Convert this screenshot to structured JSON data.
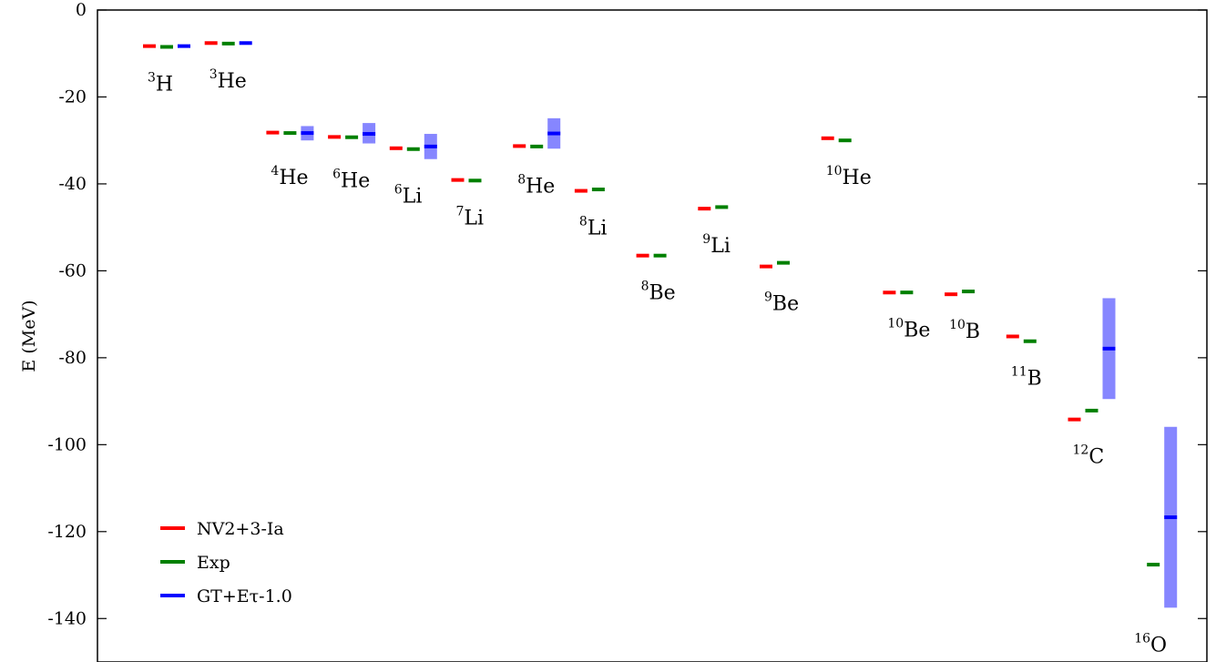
{
  "chart_data": {
    "type": "scatter",
    "title": "",
    "xlabel": "",
    "ylabel": "E (MeV)",
    "ylim": [
      -150,
      0
    ],
    "yticks": [
      0,
      -20,
      -40,
      -60,
      -80,
      -100,
      -120,
      -140
    ],
    "grid": false,
    "legend_position": "bottom-left",
    "series": [
      {
        "name": "NV2+3-Ia",
        "color": "#ff0000"
      },
      {
        "name": "Exp",
        "color": "#008000"
      },
      {
        "name": "GT+Eτ-1.0",
        "color": "#0000ff",
        "band_color": "#8080ff"
      }
    ],
    "nuclei": [
      {
        "mass": "3",
        "element": "H",
        "nv": -8.3,
        "exp": -8.48,
        "gt": -8.3,
        "gt_low": -8.3,
        "gt_high": -8.3
      },
      {
        "mass": "3",
        "element": "He",
        "nv": -7.6,
        "exp": -7.72,
        "gt": -7.6,
        "gt_low": -7.6,
        "gt_high": -7.6
      },
      {
        "mass": "4",
        "element": "He",
        "nv": -28.2,
        "exp": -28.3,
        "gt": -28.3,
        "gt_low": -30.0,
        "gt_high": -26.7
      },
      {
        "mass": "6",
        "element": "He",
        "nv": -29.2,
        "exp": -29.27,
        "gt": -28.5,
        "gt_low": -30.7,
        "gt_high": -26.0
      },
      {
        "mass": "6",
        "element": "Li",
        "nv": -31.8,
        "exp": -32.0,
        "gt": -31.4,
        "gt_low": -34.3,
        "gt_high": -28.5
      },
      {
        "mass": "7",
        "element": "Li",
        "nv": -39.1,
        "exp": -39.24,
        "gt": null,
        "gt_low": null,
        "gt_high": null
      },
      {
        "mass": "8",
        "element": "He",
        "nv": -31.3,
        "exp": -31.4,
        "gt": -28.4,
        "gt_low": -31.9,
        "gt_high": -24.9
      },
      {
        "mass": "8",
        "element": "Li",
        "nv": -41.6,
        "exp": -41.28,
        "gt": null,
        "gt_low": null,
        "gt_high": null
      },
      {
        "mass": "8",
        "element": "Be",
        "nv": -56.5,
        "exp": -56.5,
        "gt": null,
        "gt_low": null,
        "gt_high": null
      },
      {
        "mass": "9",
        "element": "Li",
        "nv": -45.7,
        "exp": -45.34,
        "gt": null,
        "gt_low": null,
        "gt_high": null
      },
      {
        "mass": "9",
        "element": "Be",
        "nv": -59.0,
        "exp": -58.16,
        "gt": null,
        "gt_low": null,
        "gt_high": null
      },
      {
        "mass": "10",
        "element": "He",
        "nv": -29.5,
        "exp": -30.0,
        "gt": null,
        "gt_low": null,
        "gt_high": null
      },
      {
        "mass": "10",
        "element": "Be",
        "nv": -65.0,
        "exp": -64.98,
        "gt": null,
        "gt_low": null,
        "gt_high": null
      },
      {
        "mass": "10",
        "element": "B",
        "nv": -65.4,
        "exp": -64.75,
        "gt": null,
        "gt_low": null,
        "gt_high": null
      },
      {
        "mass": "11",
        "element": "B",
        "nv": -75.1,
        "exp": -76.2,
        "gt": null,
        "gt_low": null,
        "gt_high": null
      },
      {
        "mass": "12",
        "element": "C",
        "nv": -94.2,
        "exp": -92.16,
        "gt": -77.9,
        "gt_low": -89.5,
        "gt_high": -66.3
      },
      {
        "mass": "16",
        "element": "O",
        "nv": null,
        "exp": -127.6,
        "gt": -116.7,
        "gt_low": -137.5,
        "gt_high": -95.9
      }
    ]
  }
}
